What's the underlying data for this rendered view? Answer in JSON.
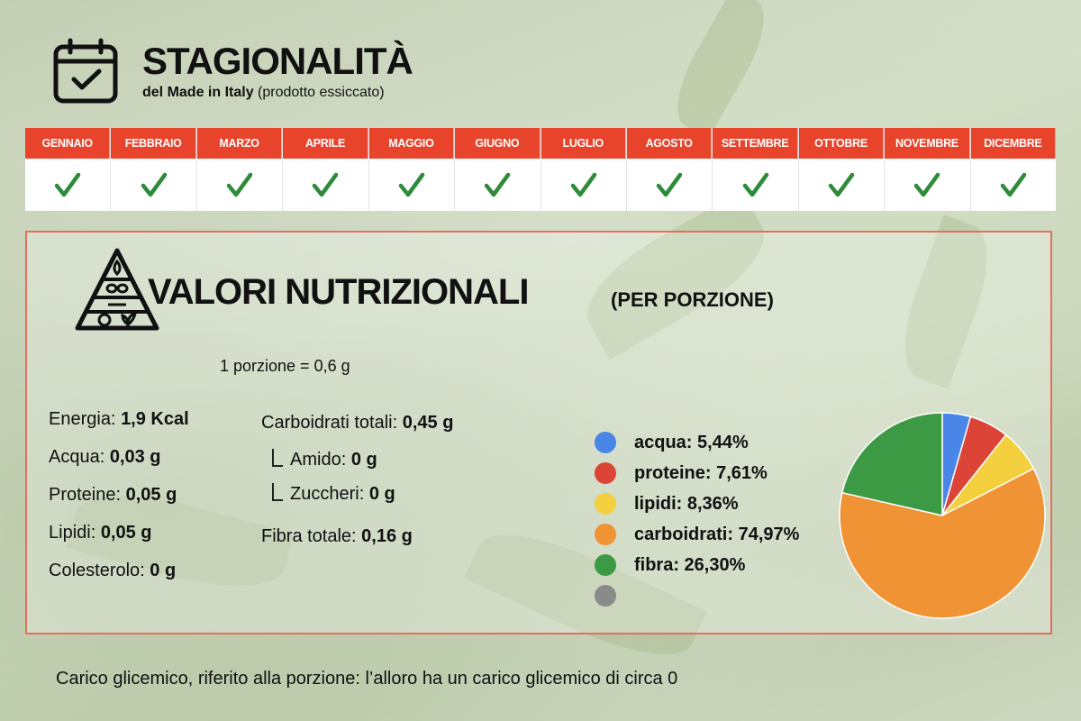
{
  "header": {
    "title": "STAGIONALITÀ",
    "subtitle_bold": "del Made in Italy",
    "subtitle_rest": " (prodotto essiccato)"
  },
  "months": [
    {
      "label": "GENNAIO",
      "available": true
    },
    {
      "label": "FEBBRAIO",
      "available": true
    },
    {
      "label": "MARZO",
      "available": true
    },
    {
      "label": "APRILE",
      "available": true
    },
    {
      "label": "MAGGIO",
      "available": true
    },
    {
      "label": "GIUGNO",
      "available": true
    },
    {
      "label": "LUGLIO",
      "available": true
    },
    {
      "label": "AGOSTO",
      "available": true
    },
    {
      "label": "SETTEMBRE",
      "available": true
    },
    {
      "label": "OTTOBRE",
      "available": true
    },
    {
      "label": "NOVEMBRE",
      "available": true
    },
    {
      "label": "DICEMBRE",
      "available": true
    }
  ],
  "nutrition": {
    "title": "VALORI NUTRIZIONALI",
    "subtitle": "(PER PORZIONE)",
    "portion": "1 porzione = 0,6 g",
    "left_column": [
      {
        "label": "Energia: ",
        "value": "1,9 Kcal"
      },
      {
        "label": "Acqua: ",
        "value": "0,03 g"
      },
      {
        "label": "Proteine: ",
        "value": "0,05 g"
      },
      {
        "label": "Lipidi: ",
        "value": "0,05 g"
      },
      {
        "label": "Colesterolo: ",
        "value": "0 g"
      }
    ],
    "carbs": {
      "label": "Carboidrati totali: ",
      "value": "0,45 g"
    },
    "amido": {
      "label": "Amido: ",
      "value": "0 g"
    },
    "zuccheri": {
      "label": "Zuccheri: ",
      "value": "0 g"
    },
    "fibra": {
      "label": "Fibra totale: ",
      "value": "0,16 g"
    }
  },
  "chart_data": {
    "type": "pie",
    "title": "",
    "legend_position": "left",
    "slices": [
      {
        "label": "acqua: 5,44%",
        "value": 5.44,
        "color": "#4a86e8"
      },
      {
        "label": "proteine: 7,61%",
        "value": 7.61,
        "color": "#db4437"
      },
      {
        "label": "lipidi: 8,36%",
        "value": 8.36,
        "color": "#f4d03f"
      },
      {
        "label": "carboidrati: 74,97%",
        "value": 74.97,
        "color": "#ef9334"
      },
      {
        "label": "fibra: 26,30%",
        "value": 26.3,
        "color": "#3c9a45"
      },
      {
        "label": "",
        "value": 0,
        "color": "#8a8a8a"
      }
    ]
  },
  "footer": {
    "glycemic": "Carico glicemico, riferito alla porzione: l’alloro ha un carico glicemico di circa 0"
  },
  "colors": {
    "accent_red": "#e8442c",
    "check_green": "#2e8b3a"
  }
}
